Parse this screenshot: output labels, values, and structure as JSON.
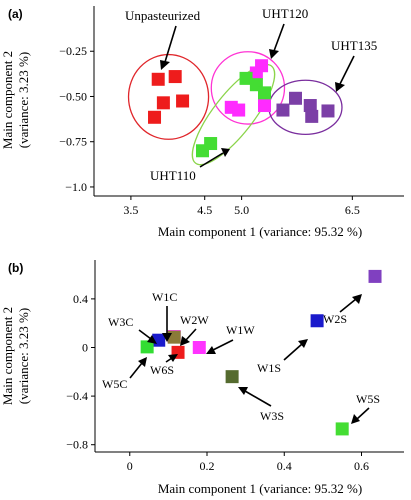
{
  "chart_data": [
    {
      "panel": "(a)",
      "type": "scatter",
      "xlabel": "Main component 1 (variance: 95.32 %)",
      "ylabel_line1": "Main component 2",
      "ylabel_line2": "(variance: 3.23 %)",
      "xlim": [
        3.0,
        7.2
      ],
      "ylim": [
        -1.05,
        0.0
      ],
      "xticks": [
        3.5,
        4.5,
        5.0,
        6.5
      ],
      "xtick_labels": [
        "3.5",
        "4.5",
        "5.0",
        "6.5"
      ],
      "yticks": [
        -0.25,
        -0.5,
        -0.75,
        -1.0
      ],
      "ytick_labels": [
        "−0.25",
        "−0.50",
        "−0.75",
        "−1.0"
      ],
      "series": [
        {
          "name": "Unpasteurized",
          "color": "#ee1c1c",
          "ellipse_color": "#e0262b",
          "x": [
            3.87,
            4.1,
            3.94,
            4.2,
            3.82
          ],
          "y": [
            -0.405,
            -0.39,
            -0.535,
            -0.525,
            -0.615
          ]
        },
        {
          "name": "UHT120",
          "color": "#ff2bff",
          "ellipse_color": "#ff33d4",
          "x": [
            5.27,
            5.2,
            4.86,
            4.96,
            5.31
          ],
          "y": [
            -0.33,
            -0.37,
            -0.56,
            -0.575,
            -0.55
          ]
        },
        {
          "name": "UHT135",
          "color": "#7b3fa6",
          "ellipse_color": "#7a2e9e",
          "x": [
            5.56,
            5.73,
            5.93,
            6.17,
            5.95
          ],
          "y": [
            -0.575,
            -0.51,
            -0.55,
            -0.58,
            -0.61
          ]
        },
        {
          "name": "UHT110",
          "color": "#44dd33",
          "ellipse_color": "#8bd44a",
          "x": [
            5.06,
            5.2,
            5.31,
            4.47,
            4.58
          ],
          "y": [
            -0.4,
            -0.435,
            -0.48,
            -0.8,
            -0.76
          ]
        }
      ]
    },
    {
      "panel": "(b)",
      "type": "scatter",
      "xlabel": "Main component 1 (variance: 95.32 %)",
      "ylabel_line1": "Main component 2",
      "ylabel_line2": "(variance: 3.23 %)",
      "xlim": [
        -0.09,
        0.71
      ],
      "ylim": [
        -0.86,
        0.72
      ],
      "xticks": [
        0,
        0.2,
        0.4,
        0.6
      ],
      "xtick_labels": [
        "0",
        "0.2",
        "0.4",
        "0.6"
      ],
      "yticks": [
        0.4,
        0.0,
        -0.4,
        -0.8
      ],
      "ytick_labels": [
        "0.4",
        "0",
        "−0.4",
        "−0.8"
      ],
      "points": [
        {
          "name": "W1C",
          "x": 0.075,
          "y": 0.06,
          "color": "#1a1acc"
        },
        {
          "name": "W3C",
          "x": 0.045,
          "y": 0.005,
          "color": "#33dd33"
        },
        {
          "name": "W2W",
          "x": 0.115,
          "y": 0.09,
          "color": "#ff33ff"
        },
        {
          "name": "W5C",
          "x": 0.115,
          "y": 0.085,
          "color": "#8a7a38"
        },
        {
          "name": "W6S",
          "x": 0.125,
          "y": -0.04,
          "color": "#ee1c1c"
        },
        {
          "name": "W1W",
          "x": 0.18,
          "y": 0.0,
          "color": "#ff33ff"
        },
        {
          "name": "W3S",
          "x": 0.265,
          "y": -0.24,
          "color": "#556b2f"
        },
        {
          "name": "W1S",
          "x": 0.485,
          "y": 0.22,
          "color": "#1a1acc"
        },
        {
          "name": "W2S",
          "x": 0.635,
          "y": 0.585,
          "color": "#8040c0"
        },
        {
          "name": "W5S",
          "x": 0.55,
          "y": -0.67,
          "color": "#44dd33"
        }
      ]
    }
  ]
}
